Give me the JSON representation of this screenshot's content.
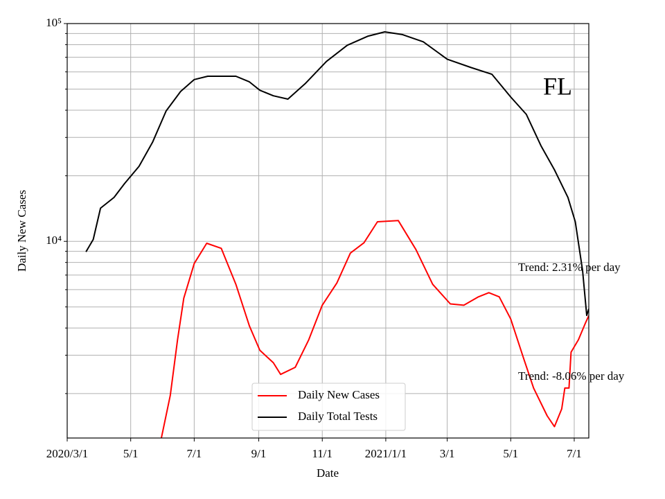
{
  "chart_data": {
    "type": "line",
    "x_label": "Date",
    "y_label": "Daily New Cases",
    "log_y": true,
    "grid": true,
    "legend": "lower center",
    "annotations": [
      "FL",
      "Trend: 2.31% per day",
      "Trend: -8.06% per day"
    ],
    "xlim": [
      "2020-03-01",
      "2021-07-15"
    ],
    "xticks": [
      {
        "value": "2020-03-01",
        "label": "2020/3/1"
      },
      {
        "value": "2020-05-01",
        "label": "5/1"
      },
      {
        "value": "2020-07-01",
        "label": "7/1"
      },
      {
        "value": "2020-09-01",
        "label": "9/1"
      },
      {
        "value": "2020-11-01",
        "label": "11/1"
      },
      {
        "value": "2021-01-01",
        "label": "2021/1/1"
      },
      {
        "value": "2021-03-01",
        "label": "3/1"
      },
      {
        "value": "2021-05-01",
        "label": "5/1"
      },
      {
        "value": "2021-07-01",
        "label": "7/1"
      }
    ],
    "ylim": [
      1250,
      100000
    ],
    "yticks": [
      {
        "value": 10000,
        "label": "10⁴"
      },
      {
        "value": 100000,
        "label": "10⁵"
      }
    ],
    "minor_yticks": [
      2000,
      3000,
      4000,
      5000,
      6000,
      7000,
      8000,
      9000,
      20000,
      30000,
      40000,
      50000,
      60000,
      70000,
      80000,
      90000
    ],
    "series": [
      {
        "name": "Daily New Cases",
        "color": "#ff0000",
        "x": [
          "2020-05-28",
          "2020-06-08",
          "2020-06-15",
          "2020-06-21",
          "2020-07-01",
          "2020-07-13",
          "2020-07-27",
          "2020-08-10",
          "2020-08-23",
          "2020-09-02",
          "2020-09-15",
          "2020-09-22",
          "2020-10-06",
          "2020-10-19",
          "2020-11-01",
          "2020-11-15",
          "2020-11-28",
          "2020-12-11",
          "2020-12-24",
          "2021-01-13",
          "2021-01-30",
          "2021-02-15",
          "2021-03-04",
          "2021-03-17",
          "2021-03-31",
          "2021-04-10",
          "2021-04-20",
          "2021-05-01",
          "2021-05-13",
          "2021-05-23",
          "2021-06-05",
          "2021-06-12",
          "2021-06-19",
          "2021-06-22",
          "2021-06-26",
          "2021-06-28",
          "2021-07-05",
          "2021-07-12",
          "2021-07-15"
        ],
        "values": [
          1100,
          1960,
          3530,
          5480,
          7910,
          9800,
          9290,
          6350,
          4090,
          3160,
          2770,
          2450,
          2640,
          3530,
          5090,
          6440,
          8830,
          9850,
          12300,
          12450,
          9160,
          6350,
          5160,
          5090,
          5560,
          5810,
          5560,
          4400,
          2940,
          2120,
          1580,
          1410,
          1700,
          2120,
          2120,
          3100,
          3530,
          4240,
          4560
        ]
      },
      {
        "name": "Daily Total Tests",
        "color": "#000000",
        "x": [
          "2020-03-19",
          "2020-03-26",
          "2020-04-02",
          "2020-04-15",
          "2020-04-25",
          "2020-05-09",
          "2020-05-22",
          "2020-06-04",
          "2020-06-18",
          "2020-07-01",
          "2020-07-14",
          "2020-08-10",
          "2020-08-23",
          "2020-09-02",
          "2020-09-15",
          "2020-09-29",
          "2020-10-16",
          "2020-11-05",
          "2020-11-25",
          "2020-12-15",
          "2020-12-31",
          "2021-01-17",
          "2021-02-06",
          "2021-03-01",
          "2021-03-24",
          "2021-04-13",
          "2021-05-01",
          "2021-05-16",
          "2021-05-30",
          "2021-06-12",
          "2021-06-25",
          "2021-07-02",
          "2021-07-09",
          "2021-07-13",
          "2021-07-15"
        ],
        "values": [
          8950,
          10200,
          14200,
          15900,
          18400,
          22100,
          28500,
          39700,
          48800,
          55300,
          57300,
          57300,
          54000,
          49400,
          46600,
          45000,
          53200,
          67000,
          79500,
          87600,
          91600,
          89000,
          82500,
          68600,
          62800,
          58500,
          46000,
          38300,
          27500,
          21300,
          15900,
          12300,
          7350,
          4570,
          4900
        ]
      }
    ]
  }
}
